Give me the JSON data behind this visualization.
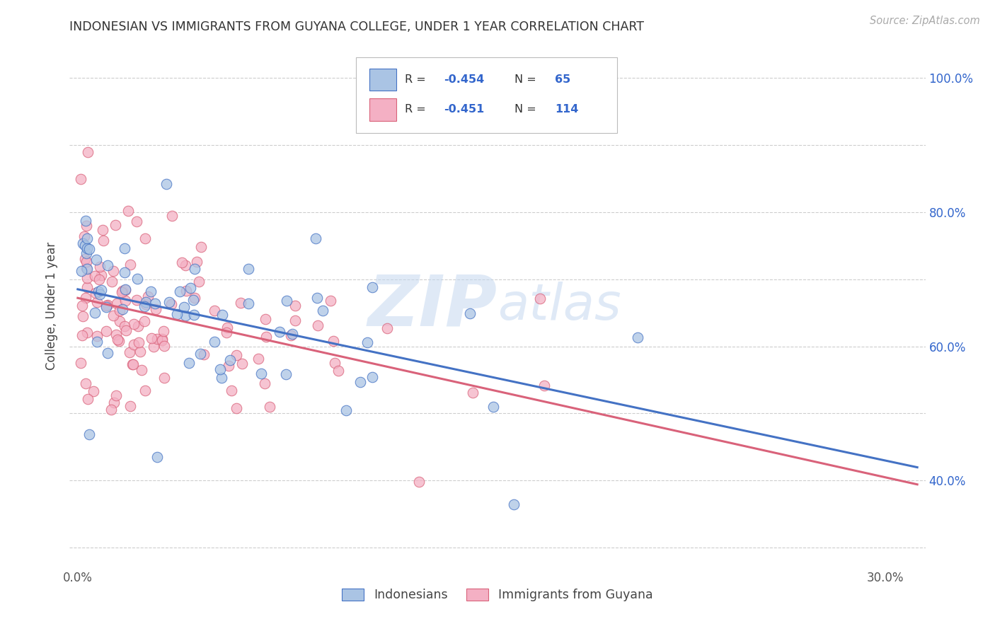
{
  "title": "INDONESIAN VS IMMIGRANTS FROM GUYANA COLLEGE, UNDER 1 YEAR CORRELATION CHART",
  "source": "Source: ZipAtlas.com",
  "ylabel": "College, Under 1 year",
  "legend_labels": [
    "Indonesians",
    "Immigrants from Guyana"
  ],
  "r_ind": "-0.454",
  "n_ind": "65",
  "r_guy": "-0.451",
  "n_guy": "114",
  "watermark_zip": "ZIP",
  "watermark_atlas": "atlas",
  "xlim": [
    -0.003,
    0.315
  ],
  "ylim": [
    0.27,
    1.05
  ],
  "color_indonesian": "#aac4e4",
  "color_indonesian_dark": "#4472c4",
  "color_guyana": "#f4b0c4",
  "color_guyana_dark": "#d9627a",
  "grid_color": "#c8c8c8",
  "background_color": "#ffffff",
  "text_blue": "#3366cc",
  "text_dark": "#444444",
  "source_color": "#aaaaaa"
}
